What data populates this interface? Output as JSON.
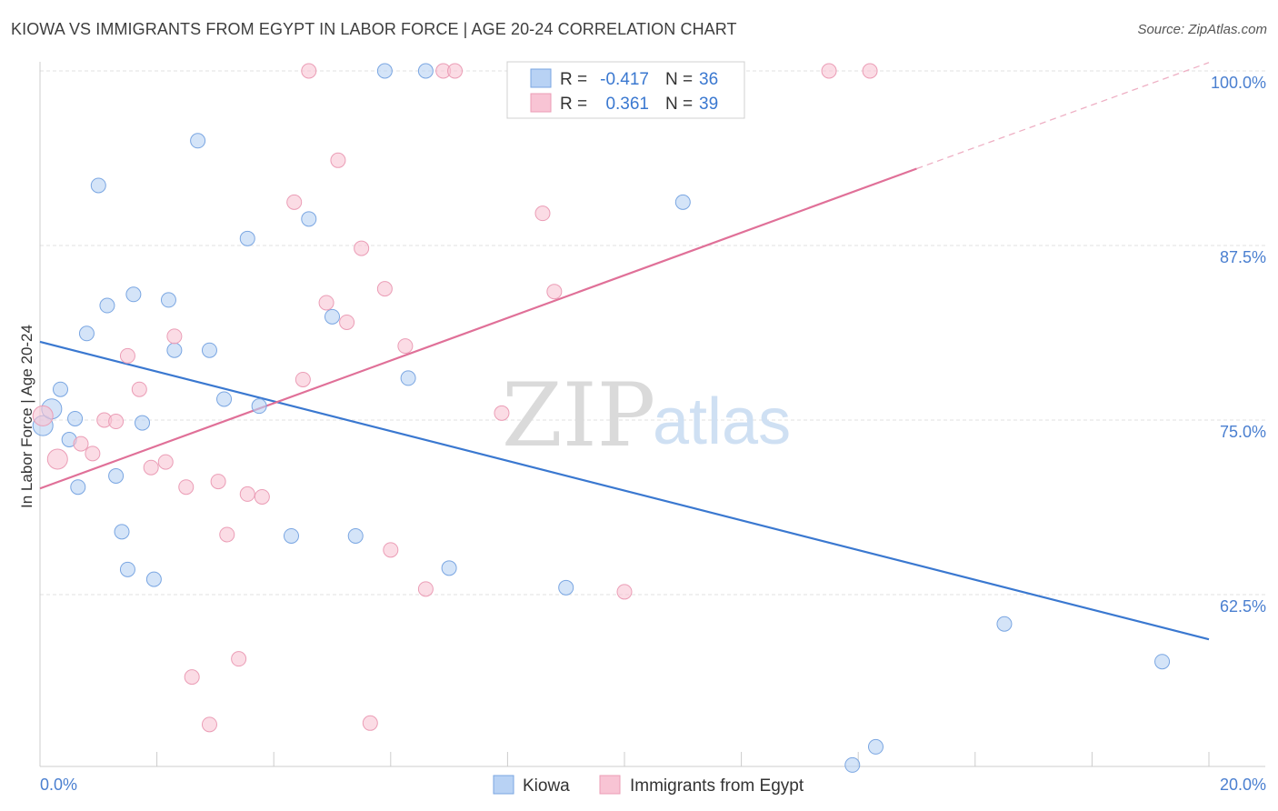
{
  "title": "KIOWA VS IMMIGRANTS FROM EGYPT IN LABOR FORCE | AGE 20-24 CORRELATION CHART",
  "source": "Source: ZipAtlas.com",
  "watermark": {
    "part1": "ZIP",
    "part2": "atlas"
  },
  "legend_box": {
    "rows": [
      {
        "r_label": "R =",
        "r_value": "-0.417",
        "n_label": "N =",
        "n_value": "36"
      },
      {
        "r_label": "R =",
        "r_value": "0.361",
        "n_label": "N =",
        "n_value": "39"
      }
    ]
  },
  "colors": {
    "kiowa": "#3a78d0",
    "egypt": "#e07098",
    "kiowa_fill": "#b8d2f4",
    "egypt_fill": "#f8c4d4",
    "tick": "#4a7fd0"
  },
  "chart_data": {
    "type": "scatter",
    "title": "KIOWA VS IMMIGRANTS FROM EGYPT IN LABOR FORCE | AGE 20-24 CORRELATION CHART",
    "xlabel": "",
    "ylabel": "In Labor Force | Age 20-24",
    "xlim": [
      0,
      20
    ],
    "ylim": [
      50,
      100
    ],
    "x_tick_labels": [
      "0.0%",
      "20.0%"
    ],
    "y_ticks": [
      62.5,
      75.0,
      87.5,
      100.0
    ],
    "y_tick_labels": [
      "62.5%",
      "75.0%",
      "87.5%",
      "100.0%"
    ],
    "grid": true,
    "legend_position": "bottom-center",
    "series": [
      {
        "name": "Kiowa",
        "color": "#3a78d0",
        "points": [
          [
            0.05,
            74.6
          ],
          [
            0.2,
            75.8
          ],
          [
            0.35,
            77.2
          ],
          [
            0.5,
            73.6
          ],
          [
            0.6,
            75.1
          ],
          [
            0.65,
            70.2
          ],
          [
            0.8,
            81.2
          ],
          [
            1.0,
            91.8
          ],
          [
            1.15,
            83.2
          ],
          [
            1.3,
            71.0
          ],
          [
            1.4,
            67.0
          ],
          [
            1.5,
            64.3
          ],
          [
            1.6,
            84.0
          ],
          [
            1.75,
            74.8
          ],
          [
            1.95,
            63.6
          ],
          [
            2.2,
            83.6
          ],
          [
            2.3,
            80.0
          ],
          [
            2.7,
            95.0
          ],
          [
            2.9,
            80.0
          ],
          [
            3.15,
            76.5
          ],
          [
            3.55,
            88.0
          ],
          [
            3.75,
            76.0
          ],
          [
            4.3,
            66.7
          ],
          [
            4.6,
            89.4
          ],
          [
            5.0,
            82.4
          ],
          [
            5.4,
            66.7
          ],
          [
            5.9,
            100.0
          ],
          [
            6.3,
            78.0
          ],
          [
            6.6,
            100.0
          ],
          [
            7.0,
            64.4
          ],
          [
            9.0,
            63.0
          ],
          [
            11.0,
            90.6
          ],
          [
            13.9,
            50.3
          ],
          [
            14.3,
            51.6
          ],
          [
            16.5,
            60.4
          ],
          [
            19.2,
            57.7
          ]
        ],
        "trend": {
          "x": [
            0.0,
            20.0
          ],
          "y": [
            80.6,
            59.3
          ]
        }
      },
      {
        "name": "Immigrants from Egypt",
        "color": "#e07098",
        "points": [
          [
            0.05,
            75.3
          ],
          [
            0.3,
            72.2
          ],
          [
            0.7,
            73.3
          ],
          [
            0.9,
            72.6
          ],
          [
            1.1,
            75.0
          ],
          [
            1.3,
            74.9
          ],
          [
            1.5,
            79.6
          ],
          [
            1.7,
            77.2
          ],
          [
            1.9,
            71.6
          ],
          [
            2.15,
            72.0
          ],
          [
            2.3,
            81.0
          ],
          [
            2.5,
            70.2
          ],
          [
            2.6,
            56.6
          ],
          [
            2.9,
            53.2
          ],
          [
            3.05,
            70.6
          ],
          [
            3.2,
            66.8
          ],
          [
            3.4,
            57.9
          ],
          [
            3.55,
            69.7
          ],
          [
            3.8,
            69.5
          ],
          [
            4.35,
            90.6
          ],
          [
            4.5,
            77.9
          ],
          [
            4.6,
            100.0
          ],
          [
            4.9,
            83.4
          ],
          [
            5.1,
            93.6
          ],
          [
            5.25,
            82.0
          ],
          [
            5.5,
            87.3
          ],
          [
            5.65,
            53.3
          ],
          [
            5.9,
            84.4
          ],
          [
            6.0,
            65.7
          ],
          [
            6.25,
            80.3
          ],
          [
            6.6,
            62.9
          ],
          [
            6.9,
            100.0
          ],
          [
            7.1,
            100.0
          ],
          [
            7.9,
            75.5
          ],
          [
            8.6,
            89.8
          ],
          [
            8.8,
            84.2
          ],
          [
            10.0,
            62.7
          ],
          [
            13.5,
            100.0
          ],
          [
            14.2,
            100.0
          ]
        ],
        "trend": {
          "x": [
            0.0,
            15.0
          ],
          "y": [
            70.1,
            93.0
          ]
        },
        "trend_dashed": {
          "x": [
            15.0,
            20.0
          ],
          "y": [
            93.0,
            100.6
          ]
        }
      }
    ]
  },
  "bottom_legend": {
    "items": [
      "Kiowa",
      "Immigrants from Egypt"
    ]
  }
}
